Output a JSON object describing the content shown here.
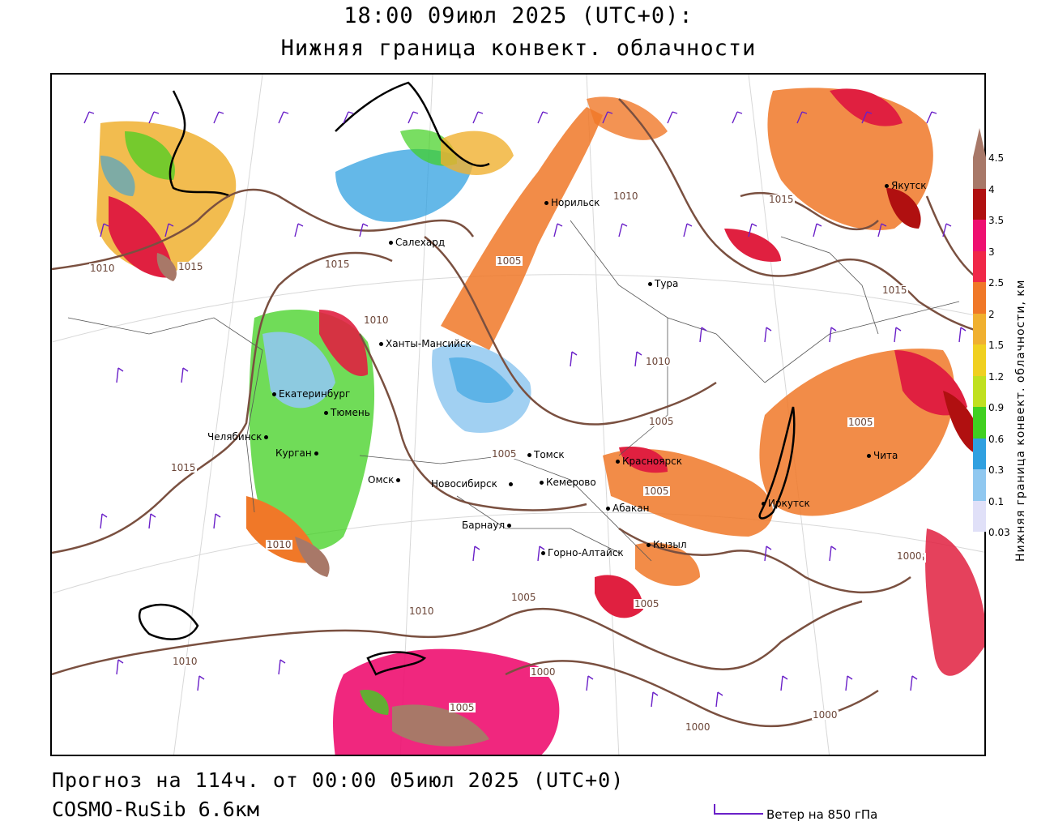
{
  "header": {
    "title": "18:00 09июл 2025 (UTC+0):",
    "subtitle": "Нижняя граница конвект. облачности"
  },
  "footer": {
    "forecast": "Прогноз на 114ч. от 00:00 05июл 2025 (UTC+0)",
    "model": "COSMO-RuSib 6.6км",
    "wind_legend": "Ветер на 850 гПа"
  },
  "scale": {
    "title": "Нижняя граница конвект. облачности, км",
    "ticks": [
      "4.5",
      "4",
      "3.5",
      "3",
      "2.5",
      "2",
      "1.5",
      "1.2",
      "0.9",
      "0.6",
      "0.3",
      "0.1",
      "0.03"
    ],
    "colors": [
      "#a87868",
      "#b01010",
      "#ee1070",
      "#f02848",
      "#f07828",
      "#f0b030",
      "#f0d020",
      "#c0e020",
      "#40d020",
      "#30a0e0",
      "#90c8f0",
      "#e0e0f8"
    ]
  },
  "cities": [
    {
      "name": "Якутск"
    },
    {
      "name": "Норильск"
    },
    {
      "name": "Салехард"
    },
    {
      "name": "Тура"
    },
    {
      "name": "Ханты-Мансийск"
    },
    {
      "name": "Екатеринбург"
    },
    {
      "name": "Тюмень"
    },
    {
      "name": "Челябинск"
    },
    {
      "name": "Курган"
    },
    {
      "name": "Омск"
    },
    {
      "name": "Новосибирск"
    },
    {
      "name": "Томск"
    },
    {
      "name": "Кемерово"
    },
    {
      "name": "Красноярск"
    },
    {
      "name": "Абакан"
    },
    {
      "name": "Барнаул"
    },
    {
      "name": "Горно-Алтайск"
    },
    {
      "name": "Кызыл"
    },
    {
      "name": "Иркутск"
    },
    {
      "name": "Чита"
    }
  ],
  "isobars": [
    "1010",
    "1015",
    "1015",
    "1010",
    "1005",
    "1010",
    "1005",
    "1005",
    "1015",
    "1015",
    "1015",
    "1010",
    "1005",
    "1005",
    "1005",
    "1010",
    "1005",
    "1010",
    "1010",
    "1005",
    "1000",
    "1005",
    "1000",
    "1000",
    "1000"
  ]
}
